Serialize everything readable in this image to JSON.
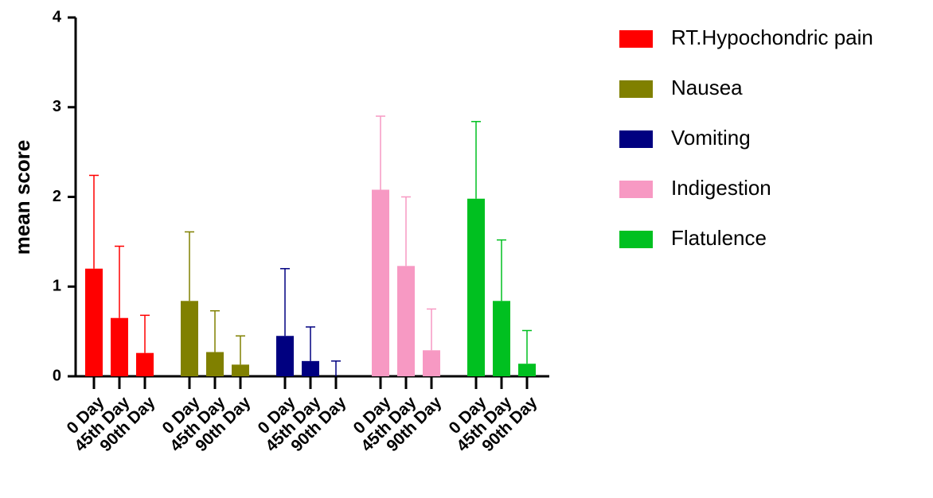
{
  "chart_data": {
    "type": "bar",
    "y_label": "mean score",
    "categories": [
      "0 Day",
      "45th Day",
      "90th Day"
    ],
    "ylim": [
      0,
      4
    ],
    "yticks": [
      0,
      1,
      2,
      3,
      4
    ],
    "series": [
      {
        "name": "RT.Hypochondric pain",
        "color": "#ff0000",
        "values": [
          1.2,
          0.65,
          0.26
        ],
        "errors": [
          1.04,
          0.8,
          0.42
        ]
      },
      {
        "name": "Nausea",
        "color": "#808000",
        "values": [
          0.84,
          0.27,
          0.13
        ],
        "errors": [
          0.77,
          0.46,
          0.32
        ]
      },
      {
        "name": "Vomiting",
        "color": "#000080",
        "values": [
          0.45,
          0.17,
          0
        ],
        "errors": [
          0.75,
          0.38,
          0.17
        ]
      },
      {
        "name": "Indigestion",
        "color": "#f799c3",
        "values": [
          2.08,
          1.23,
          0.29
        ],
        "errors": [
          0.82,
          0.77,
          0.46
        ]
      },
      {
        "name": "Flatulence",
        "color": "#00c020",
        "values": [
          1.98,
          0.84,
          0.14
        ],
        "errors": [
          0.86,
          0.68,
          0.37
        ]
      }
    ]
  }
}
